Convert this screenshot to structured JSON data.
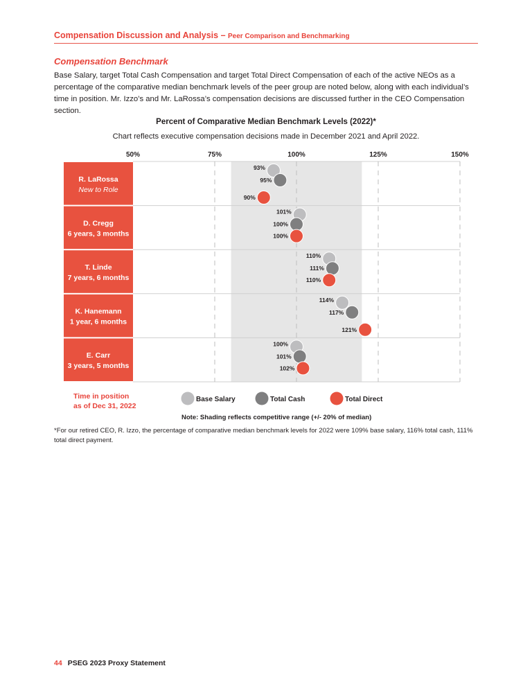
{
  "header": {
    "title": "Compensation Discussion and Analysis",
    "separator": " – ",
    "subtitle": "Peer Comparison and Benchmarking"
  },
  "section": {
    "title": "Compensation Benchmark",
    "intro": "Base Salary, target Total Cash Compensation and target Total Direct Compensation of each of the active NEOs as a percentage of the comparative median benchmark levels of the peer group are noted below, along with each individual’s time in position. Mr. Izzo’s and Mr. LaRossa’s compensation decisions are discussed further in the CEO Compensation section."
  },
  "colors": {
    "accent": "#e8523f",
    "base_salary": "#bdbdbf",
    "total_cash": "#7f7f80",
    "total_direct": "#e8523f",
    "shading": "#e6e6e6"
  },
  "chart_data": {
    "type": "scatter",
    "title": "Percent of Comparative Median Benchmark Levels (2022)*",
    "subtitle": "Chart reflects executive compensation decisions made in December 2021 and April 2022.",
    "xlim": [
      50,
      150
    ],
    "x_ticks": [
      50,
      75,
      100,
      125,
      150
    ],
    "x_tick_labels": [
      "50%",
      "75%",
      "100%",
      "125%",
      "150%"
    ],
    "shaded_range": [
      80,
      120
    ],
    "grid": "vertical-dashed",
    "row_header_label": "Time in position as of Dec 31, 2022",
    "rows": [
      {
        "name": "R. LaRossa",
        "tenure": "New to Role",
        "tenure_italic": true
      },
      {
        "name": "D. Cregg",
        "tenure": "6 years, 3 months",
        "tenure_italic": false
      },
      {
        "name": "T. Linde",
        "tenure": "7 years, 6 months",
        "tenure_italic": false
      },
      {
        "name": "K. Hanemann",
        "tenure": "1 year, 6 months",
        "tenure_italic": false
      },
      {
        "name": "E. Carr",
        "tenure": "3 years, 5 months",
        "tenure_italic": false
      }
    ],
    "series": [
      {
        "name": "Base Salary",
        "values": [
          93,
          101,
          110,
          114,
          100
        ]
      },
      {
        "name": "Total Cash",
        "values": [
          95,
          100,
          111,
          117,
          101
        ]
      },
      {
        "name": "Total Direct",
        "values": [
          90,
          100,
          110,
          121,
          102
        ]
      }
    ],
    "value_suffix": "%",
    "legend_placement": "bottom",
    "note": "Note: Shading reflects competitive range (+/- 20% of median)"
  },
  "legend": {
    "time_line1": "Time in position",
    "time_line2": "as of Dec 31, 2022"
  },
  "footnote": "*For our retired CEO, R. Izzo, the percentage of comparative median benchmark levels for 2022 were 109% base salary, 116% total cash, 111% total direct payment.",
  "footer": {
    "page": "44",
    "doc": "PSEG 2023 Proxy Statement"
  }
}
